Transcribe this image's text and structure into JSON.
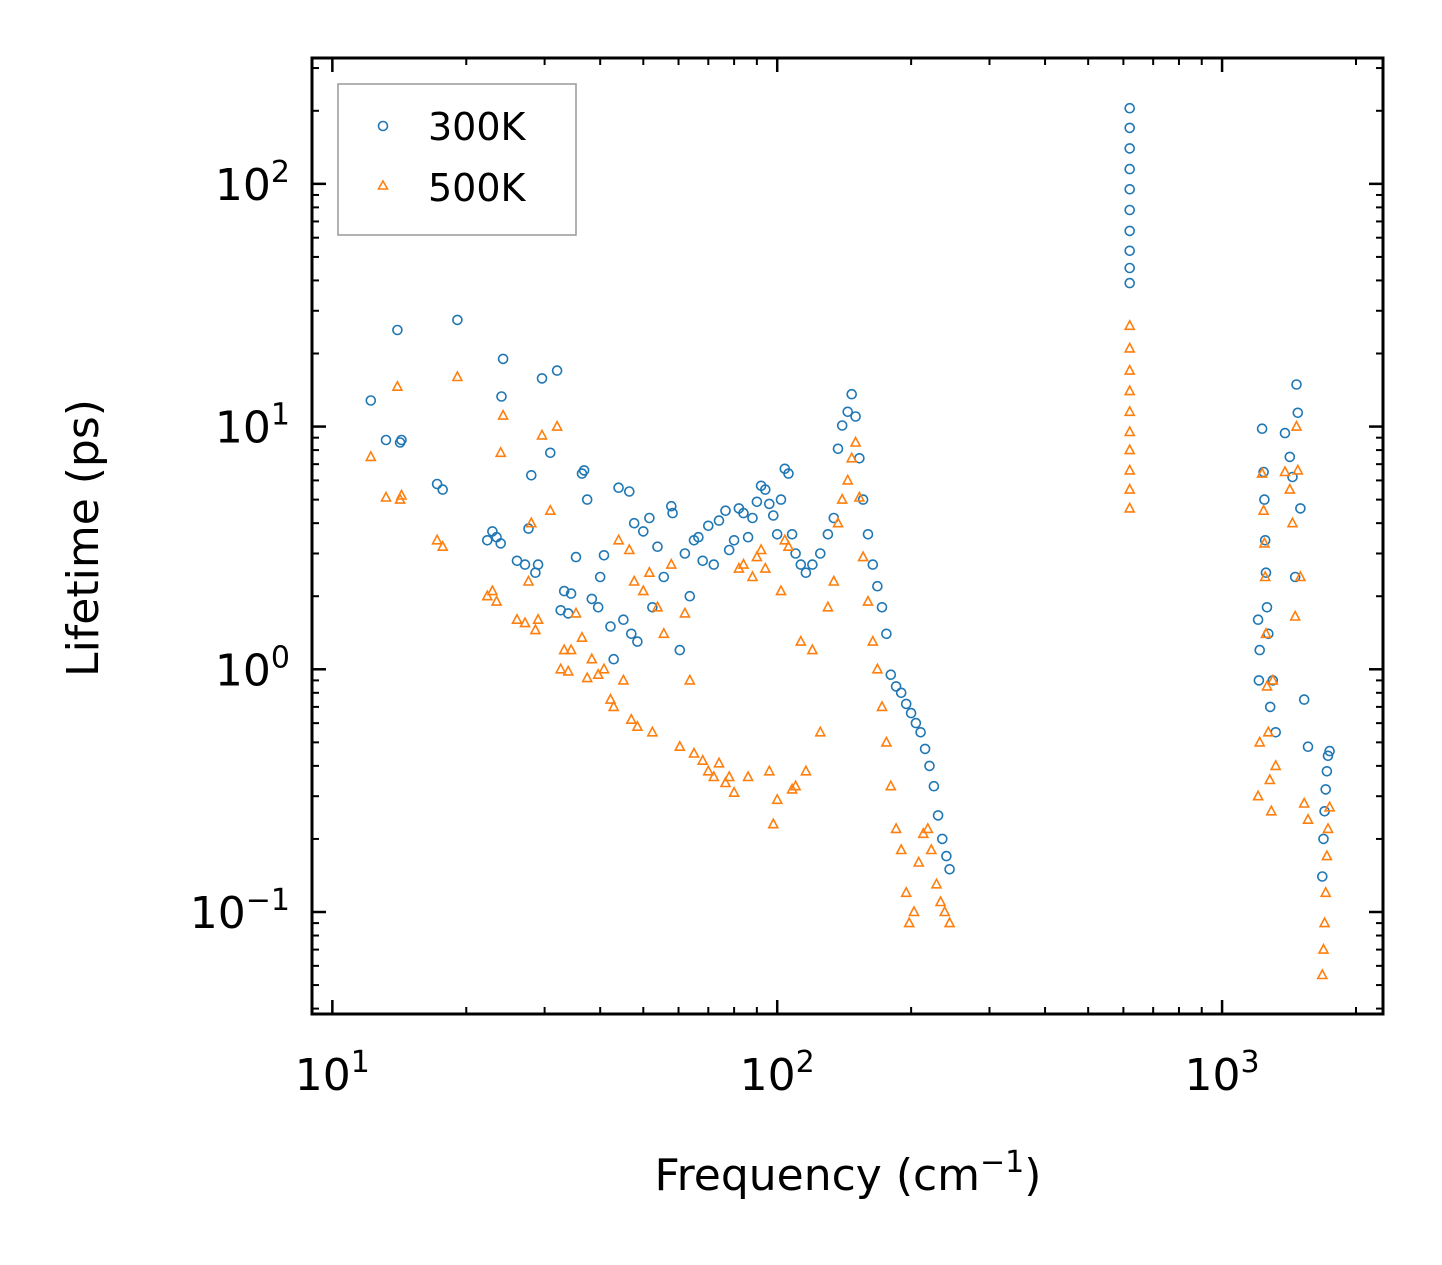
{
  "chart_data": {
    "type": "scatter",
    "title": "",
    "xlabel": "Frequency (cm",
    "xlabel_sup": "−1",
    "xlabel_end": ")",
    "ylabel": "Lifetime (ps)",
    "xscale": "log",
    "yscale": "log",
    "xlim": [
      9,
      2300
    ],
    "ylim": [
      0.038,
      330
    ],
    "legend_position": "top-left",
    "x_ticks": [
      {
        "value": 10,
        "base": "10",
        "exp": "1"
      },
      {
        "value": 100,
        "base": "10",
        "exp": "2"
      },
      {
        "value": 1000,
        "base": "10",
        "exp": "3"
      }
    ],
    "y_ticks": [
      {
        "value": 0.1,
        "base": "10",
        "exp": "−1"
      },
      {
        "value": 1,
        "base": "10",
        "exp": "0"
      },
      {
        "value": 10,
        "base": "10",
        "exp": "1"
      },
      {
        "value": 100,
        "base": "10",
        "exp": "2"
      }
    ],
    "series": [
      {
        "name": "300K",
        "marker": "circle",
        "color": "#1f77b4",
        "points": [
          [
            12.2,
            12.8
          ],
          [
            13.2,
            8.8
          ],
          [
            14.0,
            25.0
          ],
          [
            14.2,
            8.6
          ],
          [
            14.3,
            8.8
          ],
          [
            17.2,
            5.8
          ],
          [
            17.7,
            5.5
          ],
          [
            19.1,
            27.5
          ],
          [
            22.3,
            3.4
          ],
          [
            22.9,
            3.7
          ],
          [
            23.4,
            3.5
          ],
          [
            23.9,
            3.3
          ],
          [
            24.0,
            13.3
          ],
          [
            24.2,
            19.0
          ],
          [
            26.0,
            2.8
          ],
          [
            27.1,
            2.7
          ],
          [
            27.6,
            3.8
          ],
          [
            28.0,
            6.3
          ],
          [
            28.6,
            2.5
          ],
          [
            29.0,
            2.7
          ],
          [
            29.6,
            15.8
          ],
          [
            30.9,
            7.8
          ],
          [
            32.0,
            17.0
          ],
          [
            32.6,
            1.75
          ],
          [
            33.2,
            2.1
          ],
          [
            33.9,
            1.7
          ],
          [
            34.4,
            2.05
          ],
          [
            35.3,
            2.9
          ],
          [
            36.4,
            6.4
          ],
          [
            36.8,
            6.6
          ],
          [
            37.4,
            5.0
          ],
          [
            38.3,
            1.95
          ],
          [
            39.6,
            1.8
          ],
          [
            40.0,
            2.4
          ],
          [
            40.8,
            2.95
          ],
          [
            42.2,
            1.5
          ],
          [
            42.9,
            1.1
          ],
          [
            44.0,
            5.6
          ],
          [
            45.1,
            1.6
          ],
          [
            46.5,
            5.4
          ],
          [
            47.0,
            1.4
          ],
          [
            47.7,
            4.0
          ],
          [
            48.5,
            1.3
          ],
          [
            50.0,
            3.7
          ],
          [
            51.6,
            4.2
          ],
          [
            52.4,
            1.8
          ],
          [
            53.8,
            3.2
          ],
          [
            55.6,
            2.4
          ],
          [
            57.8,
            4.7
          ],
          [
            58.2,
            4.4
          ],
          [
            60.4,
            1.2
          ],
          [
            62.0,
            3.0
          ],
          [
            63.6,
            2.0
          ],
          [
            65.0,
            3.4
          ],
          [
            66.5,
            3.5
          ],
          [
            68.0,
            2.8
          ],
          [
            70.0,
            3.9
          ],
          [
            72.0,
            2.7
          ],
          [
            74.0,
            4.1
          ],
          [
            76.5,
            4.5
          ],
          [
            78.0,
            3.1
          ],
          [
            80.0,
            3.4
          ],
          [
            82.0,
            4.6
          ],
          [
            84.0,
            4.4
          ],
          [
            86.0,
            3.5
          ],
          [
            88.0,
            4.2
          ],
          [
            90.0,
            4.9
          ],
          [
            92.0,
            5.7
          ],
          [
            94.0,
            5.5
          ],
          [
            96.0,
            4.8
          ],
          [
            98.0,
            4.3
          ],
          [
            100.0,
            3.6
          ],
          [
            102.0,
            5.0
          ],
          [
            104.0,
            6.7
          ],
          [
            106.0,
            6.4
          ],
          [
            108.0,
            3.6
          ],
          [
            110.0,
            3.0
          ],
          [
            113.0,
            2.7
          ],
          [
            116.0,
            2.5
          ],
          [
            120.0,
            2.7
          ],
          [
            125.0,
            3.0
          ],
          [
            130.0,
            3.6
          ],
          [
            134.0,
            4.2
          ],
          [
            137.0,
            8.1
          ],
          [
            140.0,
            10.1
          ],
          [
            144.0,
            11.5
          ],
          [
            147.0,
            13.6
          ],
          [
            150.0,
            11.0
          ],
          [
            153.0,
            7.4
          ],
          [
            156.0,
            5.0
          ],
          [
            160.0,
            3.6
          ],
          [
            164.0,
            2.7
          ],
          [
            168.0,
            2.2
          ],
          [
            172.0,
            1.8
          ],
          [
            176.0,
            1.4
          ],
          [
            180.0,
            0.95
          ],
          [
            185.0,
            0.85
          ],
          [
            190.0,
            0.8
          ],
          [
            195.0,
            0.72
          ],
          [
            200.0,
            0.66
          ],
          [
            205.0,
            0.6
          ],
          [
            210.0,
            0.55
          ],
          [
            215.0,
            0.47
          ],
          [
            220.0,
            0.4
          ],
          [
            225.0,
            0.33
          ],
          [
            230.0,
            0.25
          ],
          [
            235.0,
            0.2
          ],
          [
            240.0,
            0.17
          ],
          [
            244.0,
            0.15
          ],
          [
            620.0,
            205.0
          ],
          [
            620.0,
            170.0
          ],
          [
            620.0,
            140.0
          ],
          [
            620.0,
            115.0
          ],
          [
            620.0,
            95.0
          ],
          [
            620.0,
            78.0
          ],
          [
            620.0,
            64.0
          ],
          [
            620.0,
            53.0
          ],
          [
            620.0,
            45.0
          ],
          [
            620.0,
            39.0
          ],
          [
            1205.0,
            1.6
          ],
          [
            1210.0,
            0.9
          ],
          [
            1215.0,
            1.2
          ],
          [
            1230.0,
            9.8
          ],
          [
            1240.0,
            6.5
          ],
          [
            1245.0,
            5.0
          ],
          [
            1250.0,
            3.4
          ],
          [
            1255.0,
            2.5
          ],
          [
            1262.0,
            1.8
          ],
          [
            1270.0,
            1.4
          ],
          [
            1283.0,
            0.7
          ],
          [
            1300.0,
            0.9
          ],
          [
            1320.0,
            0.55
          ],
          [
            1385.0,
            9.4
          ],
          [
            1420.0,
            7.5
          ],
          [
            1440.0,
            6.2
          ],
          [
            1460.0,
            2.4
          ],
          [
            1470.0,
            14.9
          ],
          [
            1480.0,
            11.4
          ],
          [
            1500.0,
            4.6
          ],
          [
            1530.0,
            0.75
          ],
          [
            1560.0,
            0.48
          ],
          [
            1680.0,
            0.14
          ],
          [
            1690.0,
            0.2
          ],
          [
            1700.0,
            0.26
          ],
          [
            1710.0,
            0.32
          ],
          [
            1720.0,
            0.38
          ],
          [
            1730.0,
            0.44
          ],
          [
            1745.0,
            0.46
          ]
        ]
      },
      {
        "name": "500K",
        "marker": "triangle",
        "color": "#ff7f0e",
        "points": [
          [
            12.2,
            7.5
          ],
          [
            13.2,
            5.1
          ],
          [
            14.0,
            14.6
          ],
          [
            14.2,
            5.0
          ],
          [
            14.3,
            5.2
          ],
          [
            17.2,
            3.4
          ],
          [
            17.7,
            3.2
          ],
          [
            19.1,
            16.0
          ],
          [
            22.3,
            2.0
          ],
          [
            22.9,
            2.1
          ],
          [
            23.4,
            1.9
          ],
          [
            23.9,
            7.8
          ],
          [
            24.2,
            11.1
          ],
          [
            26.0,
            1.6
          ],
          [
            27.1,
            1.55
          ],
          [
            27.6,
            2.3
          ],
          [
            28.0,
            4.0
          ],
          [
            28.6,
            1.45
          ],
          [
            29.0,
            1.6
          ],
          [
            29.6,
            9.2
          ],
          [
            30.9,
            4.5
          ],
          [
            32.0,
            10.0
          ],
          [
            32.6,
            1.0
          ],
          [
            33.2,
            1.2
          ],
          [
            33.9,
            0.98
          ],
          [
            34.4,
            1.2
          ],
          [
            35.3,
            1.7
          ],
          [
            36.4,
            1.35
          ],
          [
            37.4,
            0.92
          ],
          [
            38.3,
            1.1
          ],
          [
            39.6,
            0.95
          ],
          [
            40.8,
            1.0
          ],
          [
            42.2,
            0.75
          ],
          [
            42.9,
            0.7
          ],
          [
            44.0,
            3.4
          ],
          [
            45.1,
            0.9
          ],
          [
            46.5,
            3.1
          ],
          [
            47.0,
            0.62
          ],
          [
            47.7,
            2.3
          ],
          [
            48.5,
            0.58
          ],
          [
            50.0,
            2.1
          ],
          [
            51.6,
            2.5
          ],
          [
            52.4,
            0.55
          ],
          [
            53.8,
            1.8
          ],
          [
            55.6,
            1.4
          ],
          [
            57.8,
            2.7
          ],
          [
            60.4,
            0.48
          ],
          [
            62.0,
            1.7
          ],
          [
            63.6,
            0.9
          ],
          [
            65.0,
            0.45
          ],
          [
            68.0,
            0.42
          ],
          [
            70.0,
            0.38
          ],
          [
            72.0,
            0.36
          ],
          [
            74.0,
            0.41
          ],
          [
            76.5,
            0.34
          ],
          [
            78.0,
            0.36
          ],
          [
            80.0,
            0.31
          ],
          [
            82.0,
            2.6
          ],
          [
            84.0,
            2.7
          ],
          [
            86.0,
            0.36
          ],
          [
            88.0,
            2.4
          ],
          [
            90.0,
            2.9
          ],
          [
            92.0,
            3.1
          ],
          [
            94.0,
            2.6
          ],
          [
            96.0,
            0.38
          ],
          [
            98.0,
            0.23
          ],
          [
            100.0,
            0.29
          ],
          [
            102.0,
            2.1
          ],
          [
            104.0,
            3.4
          ],
          [
            106.0,
            3.2
          ],
          [
            108.0,
            0.32
          ],
          [
            110.0,
            0.33
          ],
          [
            113.0,
            1.3
          ],
          [
            116.0,
            0.38
          ],
          [
            120.0,
            1.2
          ],
          [
            125.0,
            0.55
          ],
          [
            130.0,
            1.8
          ],
          [
            134.0,
            2.3
          ],
          [
            137.0,
            4.0
          ],
          [
            140.0,
            5.0
          ],
          [
            144.0,
            6.0
          ],
          [
            147.0,
            7.4
          ],
          [
            150.0,
            8.6
          ],
          [
            153.0,
            5.1
          ],
          [
            156.0,
            2.9
          ],
          [
            160.0,
            1.9
          ],
          [
            164.0,
            1.3
          ],
          [
            168.0,
            1.0
          ],
          [
            172.0,
            0.7
          ],
          [
            176.0,
            0.5
          ],
          [
            180.0,
            0.33
          ],
          [
            185.0,
            0.22
          ],
          [
            190.0,
            0.18
          ],
          [
            195.0,
            0.12
          ],
          [
            198.0,
            0.09
          ],
          [
            203.0,
            0.1
          ],
          [
            208.0,
            0.16
          ],
          [
            213.0,
            0.21
          ],
          [
            218.0,
            0.22
          ],
          [
            222.0,
            0.18
          ],
          [
            228.0,
            0.13
          ],
          [
            233.0,
            0.11
          ],
          [
            238.0,
            0.1
          ],
          [
            244.0,
            0.09
          ],
          [
            620.0,
            26.0
          ],
          [
            620.0,
            21.0
          ],
          [
            620.0,
            17.0
          ],
          [
            620.0,
            14.0
          ],
          [
            620.0,
            11.5
          ],
          [
            620.0,
            9.5
          ],
          [
            620.0,
            8.0
          ],
          [
            620.0,
            6.6
          ],
          [
            620.0,
            5.5
          ],
          [
            620.0,
            4.6
          ],
          [
            1205.0,
            0.3
          ],
          [
            1215.0,
            0.5
          ],
          [
            1230.0,
            6.4
          ],
          [
            1240.0,
            4.5
          ],
          [
            1245.0,
            3.3
          ],
          [
            1250.0,
            2.4
          ],
          [
            1255.0,
            1.4
          ],
          [
            1262.0,
            0.85
          ],
          [
            1270.0,
            0.55
          ],
          [
            1280.0,
            0.35
          ],
          [
            1290.0,
            0.26
          ],
          [
            1300.0,
            0.9
          ],
          [
            1320.0,
            0.4
          ],
          [
            1385.0,
            6.5
          ],
          [
            1420.0,
            5.5
          ],
          [
            1440.0,
            4.0
          ],
          [
            1460.0,
            1.65
          ],
          [
            1470.0,
            10.0
          ],
          [
            1480.0,
            6.6
          ],
          [
            1500.0,
            2.4
          ],
          [
            1530.0,
            0.28
          ],
          [
            1560.0,
            0.24
          ],
          [
            1680.0,
            0.055
          ],
          [
            1690.0,
            0.07
          ],
          [
            1700.0,
            0.09
          ],
          [
            1710.0,
            0.12
          ],
          [
            1720.0,
            0.17
          ],
          [
            1730.0,
            0.22
          ],
          [
            1745.0,
            0.27
          ]
        ]
      }
    ]
  }
}
